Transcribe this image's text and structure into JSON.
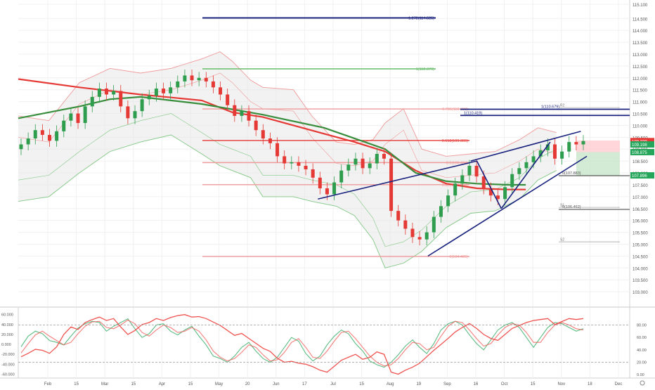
{
  "chart_data": [
    {
      "type": "candlestick",
      "title": "",
      "ylim": [
        102.5,
        115.1
      ],
      "x_ticks": [
        "Feb",
        "15",
        "Mar",
        "15",
        "Apr",
        "15",
        "May",
        "20",
        "Jun",
        "17",
        "Jul",
        "15",
        "Aug",
        "19",
        "Sep",
        "16",
        "Oct",
        "15",
        "Nov",
        "18",
        "Dec"
      ],
      "y_ticks": [
        "115.100",
        "114.500",
        "114.000",
        "113.500",
        "113.000",
        "112.500",
        "112.000",
        "111.500",
        "111.000",
        "110.500",
        "110.000",
        "109.500",
        "109.000",
        "108.500",
        "108.000",
        "107.500",
        "107.000",
        "106.500",
        "106.000",
        "105.500",
        "105.000",
        "104.500",
        "104.000",
        "103.500",
        "103.000"
      ],
      "price_badges": [
        {
          "value": "109.339",
          "color": "#e53935"
        },
        {
          "value": "109.198",
          "color": "#26a65b"
        },
        {
          "value": "108.875",
          "color": "#26a65b"
        },
        {
          "value": "107.896",
          "color": "#26a65b"
        }
      ],
      "fib_labels": [
        {
          "text": "1.272(114.525)",
          "y": 114.525,
          "color": "#1a237e"
        },
        {
          "text": "1(112.379)",
          "y": 112.379,
          "color": "#66bb6a"
        },
        {
          "text": "0.786(110.690)",
          "y": 110.69,
          "color": "#ef9a9a"
        },
        {
          "text": "0.618(109.365)",
          "y": 109.365,
          "color": "#e53935"
        },
        {
          "text": "0.5(108.434)",
          "y": 108.434,
          "color": "#ef9a9a"
        },
        {
          "text": "0.382(107.503)",
          "y": 107.503,
          "color": "#ef9a9a"
        },
        {
          "text": "0(104.485)",
          "y": 104.485,
          "color": "#ef9a9a"
        }
      ],
      "right_levels": [
        {
          "text": "1(110.679)",
          "y": 110.679,
          "color": "#1a237e"
        },
        {
          "text": "1(110.419)",
          "y": 110.419,
          "color": "#1a237e"
        },
        {
          "text": "0(107.883)",
          "y": 107.883,
          "color": "#555555"
        },
        {
          "text": "0(106.462)",
          "y": 106.462,
          "color": "#555555"
        }
      ],
      "pivot_labels": [
        {
          "text": "R2",
          "y": 110.75
        },
        {
          "text": "S1",
          "y": 106.55
        },
        {
          "text": "S2",
          "y": 105.1
        }
      ],
      "moving_averages": [
        {
          "name": "",
          "color": "#e53935",
          "points": [
            [
              0,
              111.95
            ],
            [
              0.1,
              111.6
            ],
            [
              0.2,
              111.3
            ],
            [
              0.3,
              111.05
            ],
            [
              0.35,
              110.55
            ],
            [
              0.4,
              110.35
            ],
            [
              0.45,
              110.0
            ],
            [
              0.5,
              109.65
            ],
            [
              0.55,
              109.3
            ],
            [
              0.6,
              108.9
            ],
            [
              0.65,
              108.1
            ],
            [
              0.7,
              107.55
            ],
            [
              0.75,
              107.35
            ],
            [
              0.8,
              107.3
            ],
            [
              0.83,
              107.3
            ]
          ]
        },
        {
          "name": "",
          "color": "#388e3c",
          "points": [
            [
              0,
              110.3
            ],
            [
              0.1,
              110.8
            ],
            [
              0.15,
              111.1
            ],
            [
              0.2,
              111.2
            ],
            [
              0.3,
              110.9
            ],
            [
              0.4,
              110.45
            ],
            [
              0.5,
              109.9
            ],
            [
              0.6,
              109.0
            ],
            [
              0.65,
              108.0
            ],
            [
              0.7,
              107.65
            ],
            [
              0.75,
              107.55
            ],
            [
              0.8,
              107.5
            ],
            [
              0.83,
              107.5
            ]
          ]
        }
      ],
      "bollinger": {
        "upper": [
          [
            0,
            110.4
          ],
          [
            0.05,
            110.2
          ],
          [
            0.1,
            111.8
          ],
          [
            0.15,
            112.4
          ],
          [
            0.2,
            112.2
          ],
          [
            0.25,
            112.4
          ],
          [
            0.3,
            112.8
          ],
          [
            0.33,
            113.1
          ],
          [
            0.35,
            112.7
          ],
          [
            0.38,
            111.9
          ],
          [
            0.4,
            111.6
          ],
          [
            0.45,
            111.5
          ],
          [
            0.48,
            110.4
          ],
          [
            0.52,
            109.3
          ],
          [
            0.55,
            109.2
          ],
          [
            0.58,
            109.4
          ],
          [
            0.6,
            110.1
          ],
          [
            0.63,
            110.7
          ],
          [
            0.66,
            109.0
          ],
          [
            0.7,
            108.7
          ],
          [
            0.74,
            108.8
          ],
          [
            0.78,
            108.9
          ],
          [
            0.82,
            109.4
          ],
          [
            0.85,
            109.9
          ],
          [
            0.88,
            109.7
          ]
        ],
        "lower": [
          [
            0,
            106.8
          ],
          [
            0.05,
            107.0
          ],
          [
            0.1,
            108.0
          ],
          [
            0.15,
            108.9
          ],
          [
            0.2,
            109.3
          ],
          [
            0.25,
            109.6
          ],
          [
            0.3,
            108.8
          ],
          [
            0.33,
            108.3
          ],
          [
            0.35,
            108.1
          ],
          [
            0.38,
            107.8
          ],
          [
            0.4,
            107.0
          ],
          [
            0.45,
            107.0
          ],
          [
            0.48,
            106.8
          ],
          [
            0.52,
            106.6
          ],
          [
            0.55,
            106.2
          ],
          [
            0.58,
            105.2
          ],
          [
            0.6,
            104.0
          ],
          [
            0.63,
            104.2
          ],
          [
            0.66,
            104.7
          ],
          [
            0.7,
            105.7
          ],
          [
            0.74,
            106.3
          ],
          [
            0.78,
            106.4
          ],
          [
            0.82,
            106.9
          ],
          [
            0.85,
            107.7
          ],
          [
            0.88,
            108.1
          ]
        ]
      },
      "trend_lines": [
        {
          "from": [
            0.49,
            106.9
          ],
          "to": [
            0.75,
            108.5
          ],
          "color": "#1a237e"
        },
        {
          "from": [
            0.67,
            104.5
          ],
          "to": [
            0.93,
            108.7
          ],
          "color": "#1a237e"
        },
        {
          "from": [
            0.74,
            108.5
          ],
          "to": [
            0.92,
            109.75
          ],
          "color": "#1a237e"
        },
        {
          "from": [
            0.75,
            108.5
          ],
          "to": [
            0.79,
            106.5
          ],
          "color": "#1a237e"
        },
        {
          "from": [
            0.79,
            106.5
          ],
          "to": [
            0.87,
            109.3
          ],
          "color": "#1a237e"
        }
      ],
      "closes": [
        109.2,
        109.45,
        109.8,
        109.6,
        109.35,
        109.75,
        110.2,
        110.5,
        110.1,
        110.8,
        111.2,
        111.55,
        111.3,
        111.45,
        110.8,
        110.3,
        110.6,
        111.1,
        111.25,
        111.55,
        111.35,
        111.6,
        111.85,
        112.1,
        111.9,
        112.0,
        111.85,
        111.6,
        111.3,
        110.85,
        110.4,
        110.6,
        110.2,
        109.8,
        109.45,
        109.25,
        108.7,
        108.4,
        108.45,
        108.3,
        108.15,
        107.8,
        107.35,
        107.1,
        107.6,
        108.1,
        108.35,
        108.6,
        108.2,
        108.4,
        108.8,
        108.6,
        106.4,
        106.0,
        105.65,
        105.3,
        105.2,
        105.5,
        106.15,
        106.6,
        107.05,
        107.55,
        107.9,
        108.3,
        107.85,
        107.35,
        107.05,
        106.9,
        107.4,
        107.95,
        108.2,
        108.45,
        108.7,
        108.95,
        109.2,
        108.6,
        108.9,
        109.3,
        109.2,
        109.34
      ],
      "series": [
        {
          "name": "",
          "color": "#26a65b",
          "values": [
            0.45,
            0.62,
            0.7,
            0.66,
            0.55,
            0.52,
            0.48,
            0.62,
            0.75,
            0.82,
            0.86,
            0.84,
            0.7,
            0.78,
            0.84,
            0.9,
            0.74,
            0.6,
            0.66,
            0.8,
            0.82,
            0.7,
            0.64,
            0.72,
            0.78,
            0.62,
            0.48,
            0.3,
            0.26,
            0.2,
            0.3,
            0.44,
            0.52,
            0.38,
            0.26,
            0.2,
            0.28,
            0.44,
            0.6,
            0.54,
            0.34,
            0.22,
            0.3,
            0.48,
            0.62,
            0.72,
            0.66,
            0.5,
            0.38,
            0.22,
            0.16,
            0.12,
            0.2,
            0.32,
            0.46,
            0.56,
            0.44,
            0.34,
            0.5,
            0.72,
            0.82,
            0.86,
            0.8,
            0.64,
            0.5,
            0.4,
            0.56,
            0.72,
            0.8,
            0.84,
            0.76,
            0.6,
            0.44,
            0.6,
            0.76,
            0.84,
            0.82,
            0.76,
            0.7,
            0.74
          ]
        },
        {
          "name": "",
          "color": "#ef5350",
          "values": [
            0.35,
            0.5,
            0.64,
            0.7,
            0.62,
            0.55,
            0.48,
            0.52,
            0.66,
            0.78,
            0.85,
            0.86,
            0.76,
            0.74,
            0.8,
            0.88,
            0.82,
            0.68,
            0.62,
            0.72,
            0.8,
            0.76,
            0.68,
            0.7,
            0.76,
            0.7,
            0.56,
            0.38,
            0.28,
            0.22,
            0.26,
            0.36,
            0.48,
            0.44,
            0.32,
            0.22,
            0.24,
            0.36,
            0.52,
            0.58,
            0.44,
            0.28,
            0.26,
            0.38,
            0.54,
            0.68,
            0.7,
            0.58,
            0.44,
            0.3,
            0.2,
            0.14,
            0.16,
            0.26,
            0.4,
            0.52,
            0.5,
            0.4,
            0.44,
            0.62,
            0.78,
            0.86,
            0.84,
            0.72,
            0.58,
            0.46,
            0.5,
            0.64,
            0.76,
            0.82,
            0.8,
            0.68,
            0.52,
            0.52,
            0.68,
            0.8,
            0.84,
            0.8,
            0.74,
            0.72
          ]
        }
      ]
    },
    {
      "type": "line",
      "title": "",
      "ylim": [
        -65,
        68
      ],
      "left_ticks": [
        "60.000",
        "40.000",
        "20.000",
        "0.000",
        "-20.000",
        "-40.000",
        "-60.000"
      ],
      "right_ticks": [
        "80.00",
        "60.00",
        "40.00",
        "20.00",
        "0.00"
      ],
      "series": [
        {
          "name": "",
          "color": "#ef5350",
          "values": [
            -25,
            -18,
            -10,
            -12,
            -18,
            -5,
            20,
            35,
            30,
            44,
            50,
            55,
            48,
            52,
            35,
            20,
            28,
            40,
            44,
            52,
            48,
            54,
            58,
            60,
            55,
            56,
            52,
            45,
            38,
            28,
            18,
            22,
            12,
            2,
            -8,
            -14,
            -28,
            -36,
            -34,
            -38,
            -40,
            -45,
            -52,
            -56,
            -44,
            -32,
            -26,
            -20,
            -30,
            -26,
            -15,
            -20,
            -56,
            -60,
            -52,
            -46,
            -38,
            -25,
            -12,
            0,
            12,
            25,
            34,
            42,
            32,
            20,
            12,
            8,
            20,
            32,
            38,
            44,
            48,
            50,
            52,
            40,
            46,
            52,
            50,
            52
          ]
        }
      ]
    }
  ]
}
